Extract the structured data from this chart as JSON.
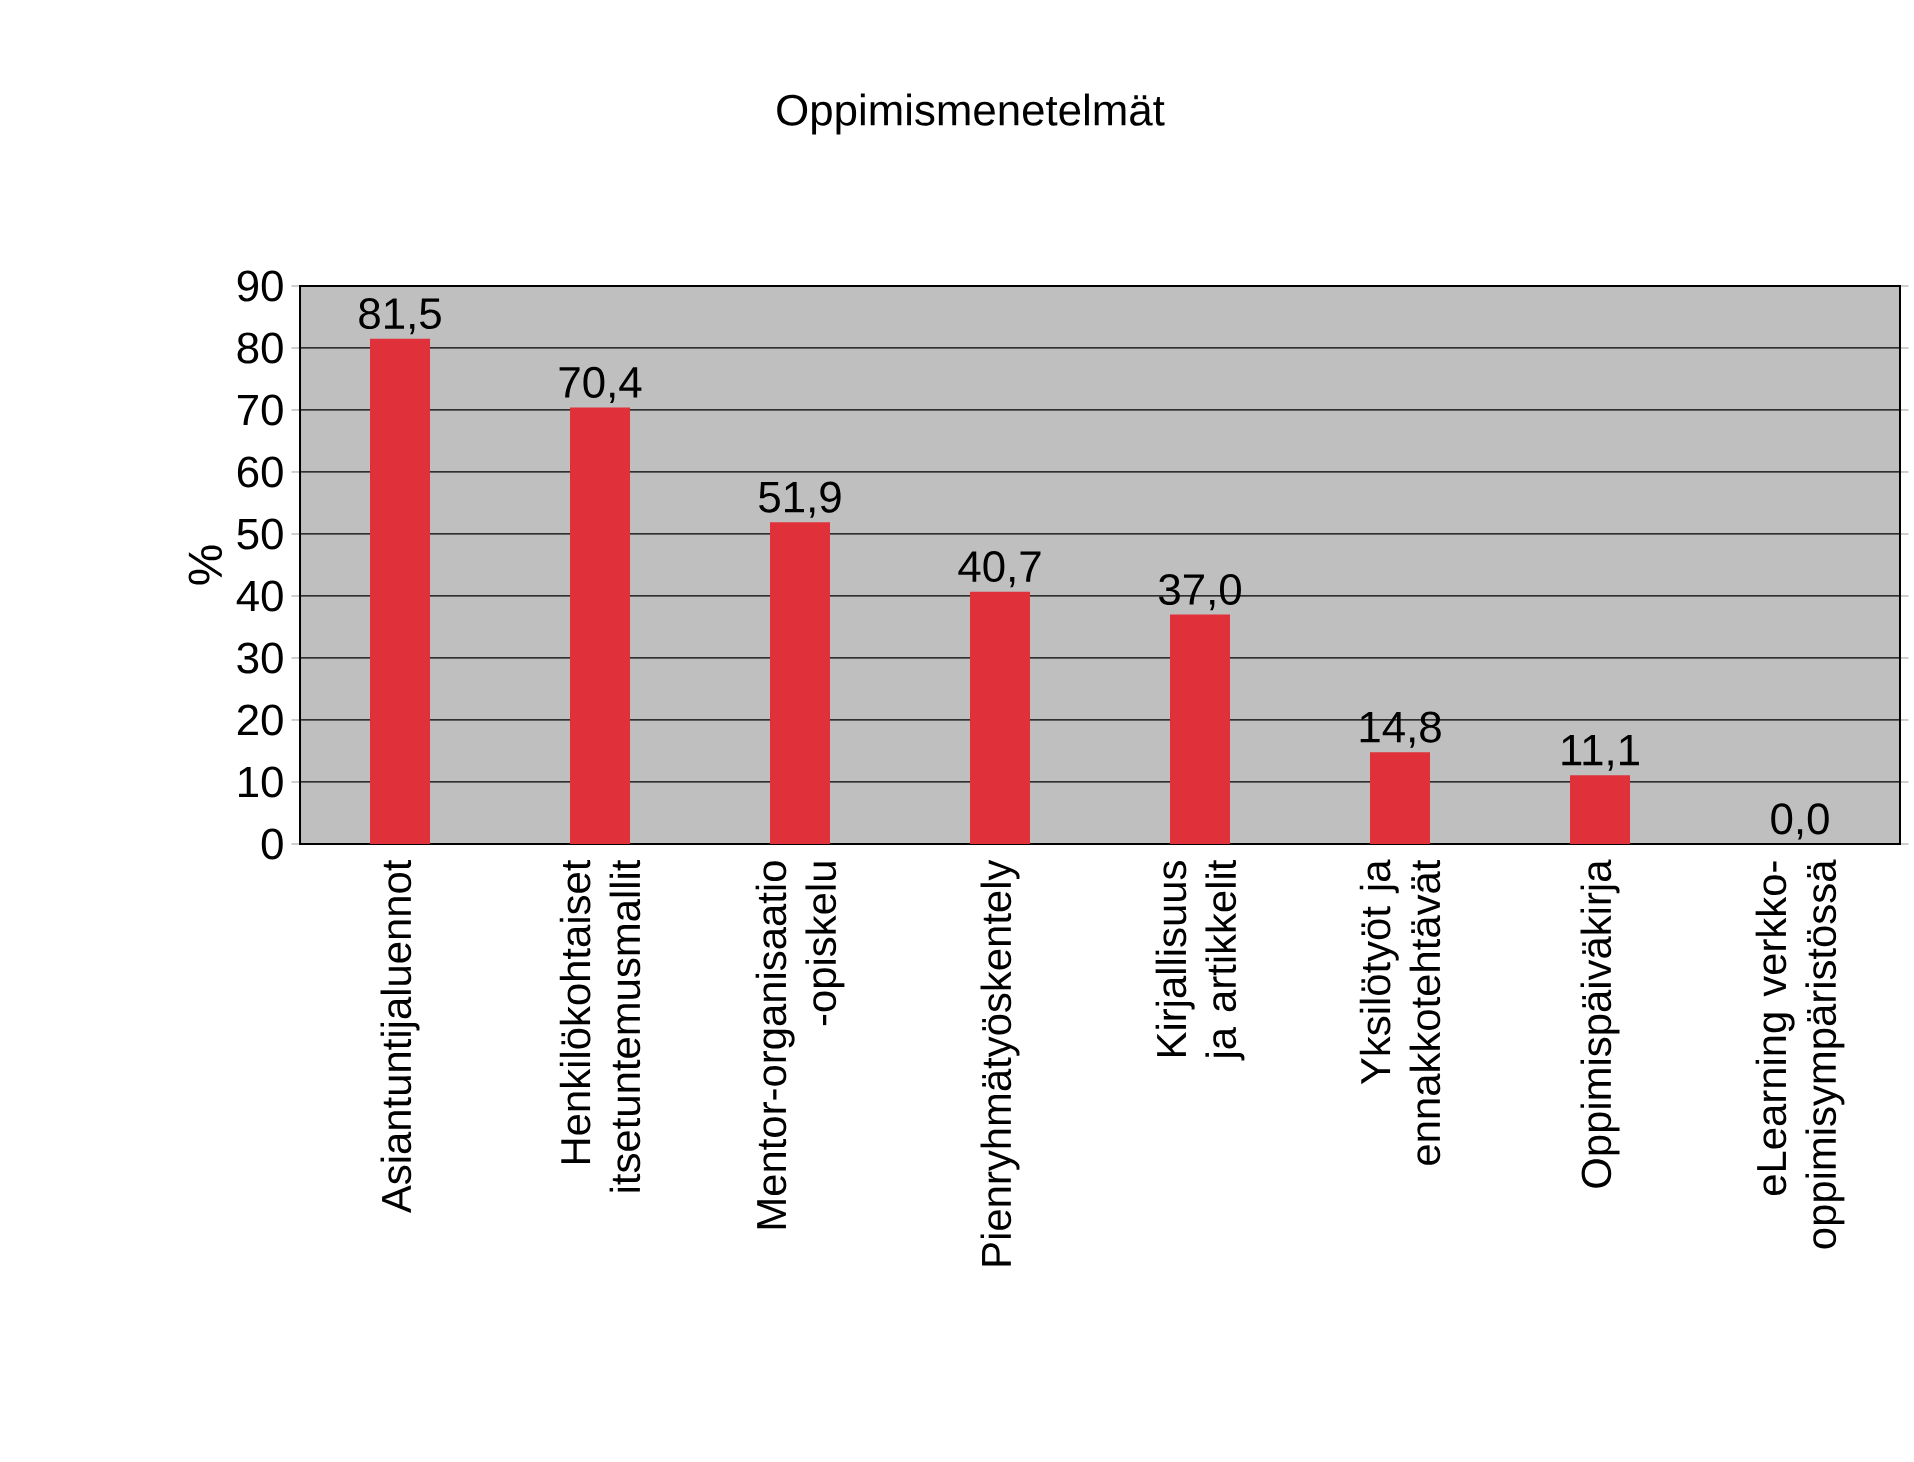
{
  "chart_data": {
    "type": "bar",
    "title": "Oppimismenetelmät",
    "ylabel": "%",
    "categories": [
      "Asiantuntijaluennot",
      "Henkilökohtaiset itsetuntemusmallit",
      "Mentor-organisaatio -opiskelu",
      "Pienryhmätyöskentely",
      "Kirjallisuus ja artikkelit",
      "Yksilötyöt ja ennakkotehtävät",
      "Oppimispäiväkirja",
      "eLearning verkko-oppimisympäristössä"
    ],
    "values": [
      81.5,
      70.4,
      51.9,
      40.7,
      37.0,
      14.8,
      11.1,
      0.0
    ],
    "value_labels": [
      "81,5",
      "70,4",
      "51,9",
      "40,7",
      "37,0",
      "14,8",
      "11,1",
      "0,0"
    ],
    "color": "#e0303a",
    "ylim": [
      0,
      90
    ],
    "yticks": [
      0,
      10,
      20,
      30,
      40,
      50,
      60,
      70,
      80,
      90
    ],
    "grid": "y"
  }
}
